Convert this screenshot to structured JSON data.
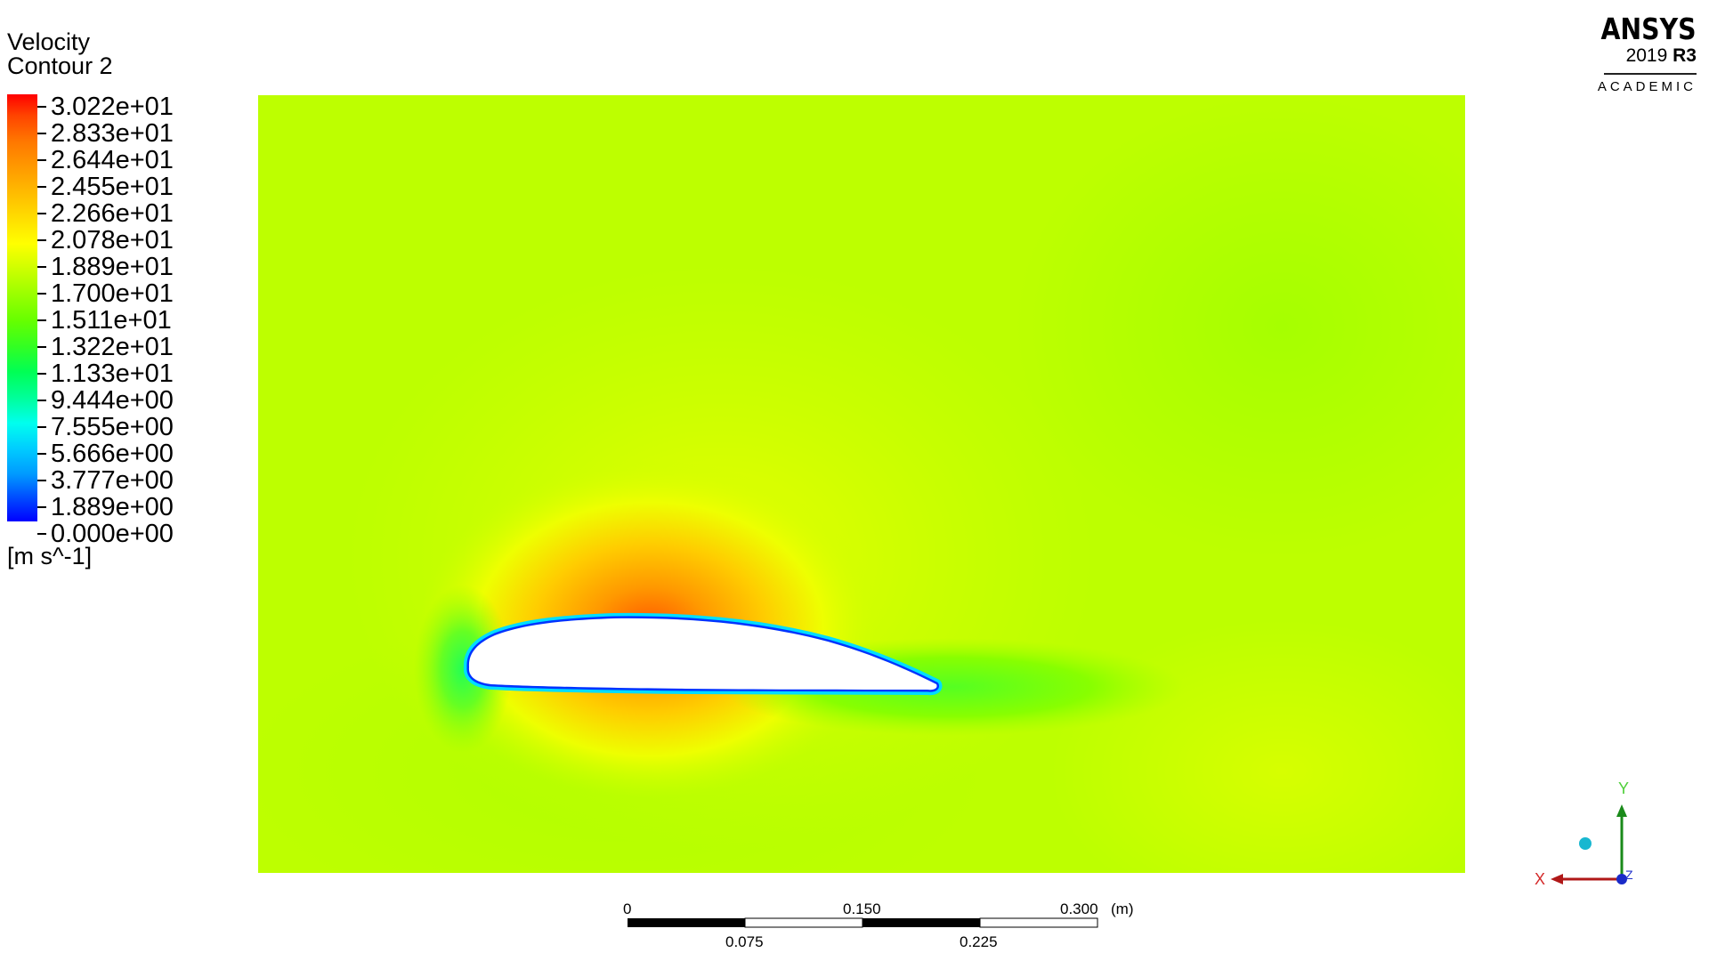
{
  "legend": {
    "title_line1": "Velocity",
    "title_line2": "Contour 2",
    "labels": [
      "3.022e+01",
      "2.833e+01",
      "2.644e+01",
      "2.455e+01",
      "2.266e+01",
      "2.078e+01",
      "1.889e+01",
      "1.700e+01",
      "1.511e+01",
      "1.322e+01",
      "1.133e+01",
      "9.444e+00",
      "7.555e+00",
      "5.666e+00",
      "3.777e+00",
      "1.889e+00",
      "0.000e+00"
    ],
    "units": "[m s^-1]"
  },
  "brand": {
    "name": "ANSYS",
    "version": "2019",
    "release": "R3",
    "edition": "ACADEMIC"
  },
  "scale": {
    "top_labels": [
      "0",
      "0.150",
      "0.300"
    ],
    "bottom_labels": [
      "0.075",
      "0.225"
    ],
    "unit": "(m)"
  },
  "axes": {
    "x": "X",
    "y": "Y",
    "z": "Z",
    "x_color": "#d42a2a",
    "y_color": "#4fcf3a",
    "z_color": "#2233cc"
  },
  "colors": {
    "freestream": "#bfff00",
    "surface": "#0033ff"
  }
}
